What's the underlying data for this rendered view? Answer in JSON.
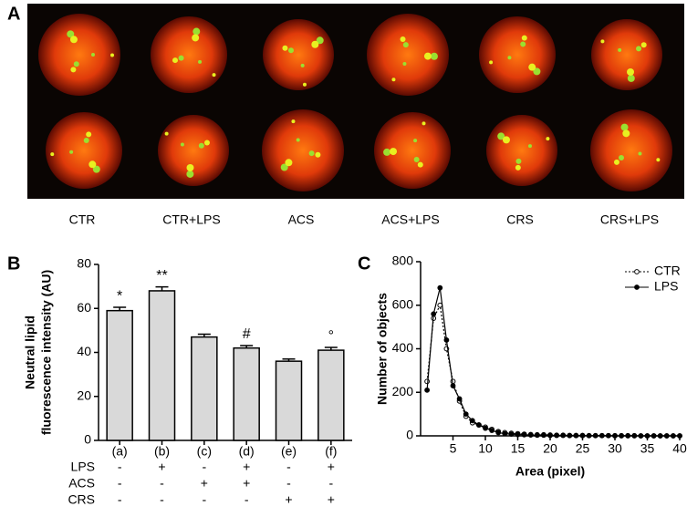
{
  "panel_a": {
    "label": "A",
    "captions": [
      "CTR",
      "CTR+LPS",
      "ACS",
      "ACS+LPS",
      "CRS",
      "CRS+LPS"
    ]
  },
  "chart_data": [
    {
      "type": "bar",
      "panel": "B",
      "ylabel": [
        "Neutral lipid",
        "fluorescence intensity (AU)"
      ],
      "categories": [
        "(a)",
        "(b)",
        "(c)",
        "(d)",
        "(e)",
        "(f)"
      ],
      "values": [
        59,
        68,
        47,
        42,
        36,
        41
      ],
      "errors": [
        1.5,
        1.8,
        1.3,
        1.1,
        1,
        1.3
      ],
      "annotations": [
        "*",
        "**",
        null,
        "#",
        null,
        "°"
      ],
      "treatments": [
        {
          "name": "LPS",
          "signs": [
            "-",
            "+",
            "-",
            "+",
            "-",
            "+"
          ]
        },
        {
          "name": "ACS",
          "signs": [
            "-",
            "-",
            "+",
            "+",
            "-",
            "-"
          ]
        },
        {
          "name": "CRS",
          "signs": [
            "-",
            "-",
            "-",
            "-",
            "+",
            "+"
          ]
        }
      ],
      "color": "#d9d9d9",
      "ylim": [
        0,
        80
      ],
      "yticks": [
        0,
        20,
        40,
        60,
        80
      ]
    },
    {
      "type": "line",
      "panel": "C",
      "xlabel": "Area (pixel)",
      "ylabel": "Number of objects",
      "x": [
        1,
        2,
        3,
        4,
        5,
        6,
        7,
        8,
        9,
        10,
        11,
        12,
        13,
        14,
        15,
        16,
        17,
        18,
        19,
        20,
        21,
        22,
        23,
        24,
        25,
        26,
        27,
        28,
        29,
        30,
        31,
        32,
        33,
        34,
        35,
        36,
        37,
        38,
        39,
        40
      ],
      "series": [
        {
          "name": "CTR",
          "color": "#000000",
          "line_style": "dotted",
          "marker": "open",
          "values": [
            250,
            540,
            600,
            400,
            250,
            160,
            90,
            60,
            50,
            40,
            30,
            20,
            15,
            12,
            10,
            8,
            6,
            5,
            5,
            4,
            3,
            3,
            2,
            2,
            2,
            1,
            1,
            1,
            1,
            1,
            1,
            1,
            1,
            0,
            0,
            0,
            0,
            0,
            0,
            0
          ]
        },
        {
          "name": "LPS",
          "color": "#000000",
          "line_style": "solid",
          "marker": "filled",
          "values": [
            210,
            560,
            680,
            440,
            230,
            170,
            100,
            70,
            50,
            35,
            25,
            15,
            10,
            8,
            6,
            5,
            4,
            3,
            3,
            2,
            2,
            2,
            1,
            1,
            1,
            1,
            1,
            1,
            1,
            0,
            0,
            0,
            0,
            0,
            0,
            0,
            0,
            0,
            0,
            0
          ]
        }
      ],
      "xlim": [
        0,
        40
      ],
      "xticks": [
        5,
        10,
        15,
        20,
        25,
        30,
        35,
        40
      ],
      "ylim": [
        0,
        800
      ],
      "yticks": [
        0,
        200,
        400,
        600,
        800
      ],
      "legend": "top-right"
    }
  ]
}
